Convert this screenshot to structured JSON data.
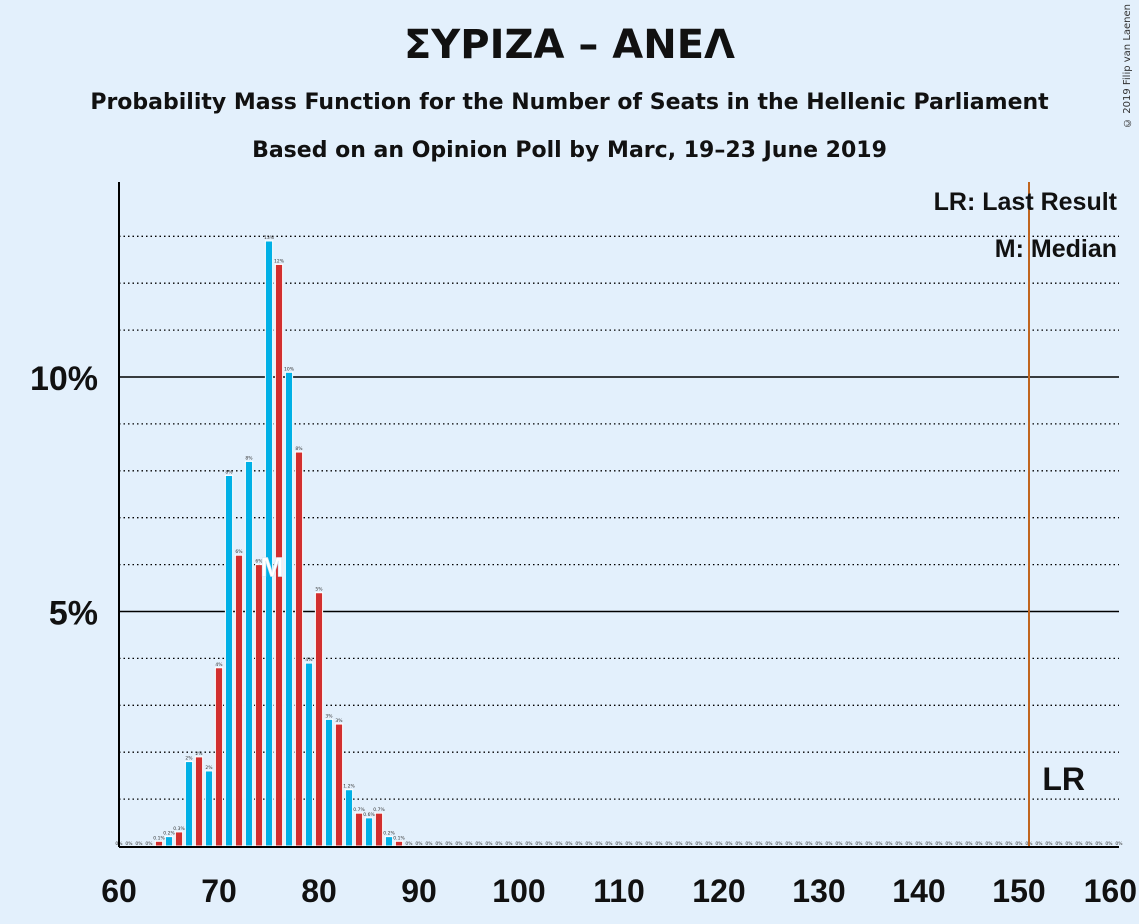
{
  "title": "ΣΥΡΙΖΑ – ΑΝΕΛ",
  "subtitle1": "Probability Mass Function for the Number of Seats in the Hellenic Parliament",
  "subtitle2": "Based on an Opinion Poll by Marc, 19–23 June 2019",
  "copyright": "© 2019 Filip van Laenen",
  "legend": {
    "lr": "LR: Last Result",
    "m": "M: Median"
  },
  "lr_label": "LR",
  "median_label": "M",
  "colors": {
    "blue": "#00b0e6",
    "red": "#d22f2f",
    "lr": "#c0651f",
    "background": "#e3f0fc"
  },
  "chart_data": {
    "type": "bar",
    "x": [
      60,
      61,
      62,
      63,
      64,
      65,
      66,
      67,
      68,
      69,
      70,
      71,
      72,
      73,
      74,
      75,
      76,
      77,
      78,
      79,
      80,
      81,
      82,
      83,
      84,
      85,
      86,
      87,
      88,
      89,
      90,
      91,
      92,
      93,
      94,
      95,
      96,
      97,
      98,
      99,
      100,
      101,
      102,
      103,
      104,
      105,
      106,
      107,
      108,
      109,
      110,
      111,
      112,
      113,
      114,
      115,
      116,
      117,
      118,
      119,
      120,
      121,
      122,
      123,
      124,
      125,
      126,
      127,
      128,
      129,
      130,
      131,
      132,
      133,
      134,
      135,
      136,
      137,
      138,
      139,
      140,
      141,
      142,
      143,
      144,
      145,
      146,
      147,
      148,
      149,
      150,
      151,
      152,
      153,
      154,
      155,
      156,
      157,
      158,
      159,
      160
    ],
    "values": [
      0,
      0,
      0,
      0,
      0.1,
      0.2,
      0.3,
      1.8,
      1.9,
      1.6,
      3.8,
      7.9,
      6.2,
      8.2,
      6.0,
      12.9,
      12.4,
      10.1,
      8.4,
      3.9,
      5.4,
      2.7,
      2.6,
      1.2,
      0.7,
      0.6,
      0.7,
      0.2,
      0.1,
      0,
      0,
      0,
      0,
      0,
      0,
      0,
      0,
      0,
      0,
      0,
      0,
      0,
      0,
      0,
      0,
      0,
      0,
      0,
      0,
      0,
      0,
      0,
      0,
      0,
      0,
      0,
      0,
      0,
      0,
      0,
      0,
      0,
      0,
      0,
      0,
      0,
      0,
      0,
      0,
      0,
      0,
      0,
      0,
      0,
      0,
      0,
      0,
      0,
      0,
      0,
      0,
      0,
      0,
      0,
      0,
      0,
      0,
      0,
      0,
      0,
      0,
      0,
      0,
      0,
      0,
      0,
      0,
      0,
      0,
      0,
      0
    ],
    "labels": [
      "0%",
      "0%",
      "0%",
      "0%",
      "0.1%",
      "0.2%",
      "0.3%",
      "2%",
      "2%",
      "2%",
      "4%",
      "8%",
      "6%",
      "8%",
      "6%",
      "13%",
      "12%",
      "10%",
      "8%",
      "4%",
      "5%",
      "3%",
      "3%",
      "1.2%",
      "0.7%",
      "0.6%",
      "0.7%",
      "0.2%",
      "0.1%",
      "0%",
      "0%",
      "0%",
      "0%",
      "0%",
      "0%",
      "0%",
      "0%",
      "0%",
      "0%",
      "0%",
      "0%",
      "0%",
      "0%",
      "0%",
      "0%",
      "0%",
      "0%",
      "0%",
      "0%",
      "0%",
      "0%",
      "0%",
      "0%",
      "0%",
      "0%",
      "0%",
      "0%",
      "0%",
      "0%",
      "0%",
      "0%",
      "0%",
      "0%",
      "0%",
      "0%",
      "0%",
      "0%",
      "0%",
      "0%",
      "0%",
      "0%",
      "0%",
      "0%",
      "0%",
      "0%",
      "0%",
      "0%",
      "0%",
      "0%",
      "0%",
      "0%",
      "0%",
      "0%",
      "0%",
      "0%",
      "0%",
      "0%",
      "0%",
      "0%",
      "0%",
      "0%",
      "0%",
      "0%",
      "0%",
      "0%",
      "0%",
      "0%",
      "0%",
      "0%",
      "0%",
      "0%"
    ],
    "xlim": [
      60,
      160
    ],
    "ylim": [
      0,
      14
    ],
    "xticks": [
      60,
      70,
      80,
      90,
      100,
      110,
      120,
      130,
      140,
      150,
      160
    ],
    "yticks_labeled": [
      {
        "value": 5,
        "label": "5%"
      },
      {
        "value": 10,
        "label": "10%"
      }
    ],
    "gridlines": [
      1,
      2,
      3,
      4,
      5,
      6,
      7,
      8,
      9,
      10,
      11,
      12,
      13
    ],
    "last_result": 151,
    "median": 75
  }
}
